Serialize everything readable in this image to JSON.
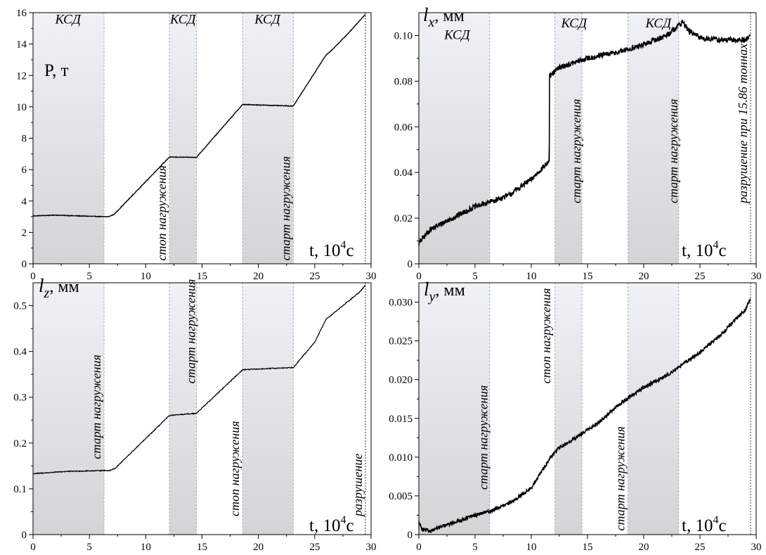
{
  "chart_data": [
    {
      "type": "line",
      "xlim": [
        0,
        30
      ],
      "ylim": [
        0,
        16
      ],
      "x_ticks": [
        "0",
        "5",
        "10",
        "15",
        "20",
        "25",
        "30"
      ],
      "y_ticks": [
        "0",
        "2",
        "4",
        "6",
        "8",
        "10",
        "12",
        "14",
        "16"
      ],
      "ylabel": "P, т",
      "xlabel_text": "t, 10",
      "xlabel_exp": "4",
      "xlabel_unit": "c",
      "shaded_regions": [
        [
          0,
          6.3
        ],
        [
          12.1,
          14.5
        ],
        [
          18.6,
          23.1
        ]
      ],
      "region_labels": [
        {
          "text": "КСД",
          "x": 3.1,
          "y": 15.3
        },
        {
          "text": "КСД",
          "x": 13.3,
          "y": 15.3
        },
        {
          "text": "КСД",
          "x": 20.8,
          "y": 15.3
        }
      ],
      "vertical_labels": [
        {
          "text": "стоп нагружения",
          "x": 12.1,
          "y": 0.2
        },
        {
          "text": "старт нагружения",
          "x": 23.1,
          "y": 0.2
        }
      ],
      "end_line_x": 29.5,
      "stroke": 1.4,
      "noise": 0.02,
      "series": [
        {
          "x": [
            0,
            2,
            4,
            6.3,
            6.7,
            7.2,
            12.1,
            14.5,
            18.6,
            23.1,
            26,
            26.5,
            28,
            29,
            29.5
          ],
          "y": [
            3.05,
            3.1,
            3.05,
            3.0,
            3.0,
            3.15,
            6.8,
            6.78,
            10.15,
            10.05,
            13.3,
            13.6,
            14.7,
            15.5,
            15.9
          ]
        }
      ]
    },
    {
      "type": "line",
      "xlim": [
        0,
        30
      ],
      "ylim": [
        0,
        0.11
      ],
      "x_ticks": [
        "0",
        "5",
        "10",
        "15",
        "20",
        "25",
        "30"
      ],
      "y_ticks": [
        "0",
        "0.02",
        "0.04",
        "0.06",
        "0.08",
        "0.10"
      ],
      "ylabel_letter": "l",
      "ylabel_sub": "x",
      "ylabel_unit": ", мм",
      "xlabel_text": "t, 10",
      "xlabel_exp": "4",
      "xlabel_unit": "c",
      "shaded_regions": [
        [
          0,
          6.3
        ],
        [
          12.1,
          14.5
        ],
        [
          18.6,
          23.1
        ]
      ],
      "region_labels": [
        {
          "text": "КСД",
          "x": 3.4,
          "y": 0.0985
        },
        {
          "text": "КСД",
          "x": 13.8,
          "y": 0.1035
        },
        {
          "text": "КСД",
          "x": 21.3,
          "y": 0.1035
        }
      ],
      "vertical_labels": [
        {
          "text": "старт нагружения",
          "x": 14.7,
          "y": 0.0265
        },
        {
          "text": "старт нагружения",
          "x": 23.3,
          "y": 0.0265
        },
        {
          "text": "разрушение при 15.86 тоннах",
          "x": 29.5,
          "y": 0.0265
        }
      ],
      "end_line_x": 29.5,
      "stroke": 1.6,
      "noise": 0.0012,
      "series": [
        {
          "x": [
            0,
            1,
            3,
            5,
            6.3,
            8,
            10,
            11.6,
            11.62,
            12.5,
            15,
            18,
            20,
            22,
            23,
            23.5,
            24,
            25,
            27,
            29,
            29.5
          ],
          "y": [
            0.009,
            0.015,
            0.02,
            0.025,
            0.027,
            0.03,
            0.037,
            0.045,
            0.082,
            0.086,
            0.09,
            0.093,
            0.096,
            0.1,
            0.104,
            0.106,
            0.102,
            0.099,
            0.098,
            0.098,
            0.1
          ]
        }
      ]
    },
    {
      "type": "line",
      "xlim": [
        0,
        30
      ],
      "ylim": [
        0,
        0.55
      ],
      "x_ticks": [
        "0",
        "5",
        "10",
        "15",
        "20",
        "25",
        "30"
      ],
      "y_ticks": [
        "0",
        "0.1",
        "0.2",
        "0.3",
        "0.4",
        "0.5"
      ],
      "ylabel_letter": "l",
      "ylabel_sub": "z",
      "ylabel_unit": ", мм",
      "xlabel_text": "t, 10",
      "xlabel_exp": "4",
      "xlabel_unit": "c",
      "shaded_regions": [
        [
          0,
          6.3
        ],
        [
          12.1,
          14.5
        ],
        [
          18.6,
          23.1
        ]
      ],
      "region_labels": [],
      "vertical_labels": [
        {
          "text": "старт нагружения",
          "x": 6.3,
          "y": 0.165
        },
        {
          "text": "старт нагружения",
          "x": 14.7,
          "y": 0.33
        },
        {
          "text": "стоп нагружения",
          "x": 18.6,
          "y": 0.04
        },
        {
          "text": "разрушение",
          "x": 29.5,
          "y": 0.04
        }
      ],
      "end_line_x": 29.5,
      "stroke": 1.2,
      "noise": 0.001,
      "series": [
        {
          "x": [
            0,
            3,
            6.3,
            6.8,
            7.3,
            12.1,
            14.5,
            18.6,
            23.1,
            25,
            26,
            27,
            28,
            29,
            29.5
          ],
          "y": [
            0.133,
            0.138,
            0.14,
            0.14,
            0.145,
            0.26,
            0.265,
            0.36,
            0.365,
            0.42,
            0.47,
            0.49,
            0.51,
            0.53,
            0.545
          ]
        }
      ]
    },
    {
      "type": "line",
      "xlim": [
        0,
        30
      ],
      "ylim": [
        0,
        0.0325
      ],
      "x_ticks": [
        "0",
        "5",
        "10",
        "15",
        "20",
        "25",
        "30"
      ],
      "y_ticks": [
        "0",
        "0.005",
        "0.010",
        "0.015",
        "0.020",
        "0.025",
        "0.030"
      ],
      "ylabel_letter": "l",
      "ylabel_sub": "y",
      "ylabel_unit": ", мм",
      "xlabel_text": "t, 10",
      "xlabel_exp": "4",
      "xlabel_unit": "c",
      "shaded_regions": [
        [
          0,
          6.3
        ],
        [
          12.1,
          14.5
        ],
        [
          18.6,
          23.1
        ]
      ],
      "region_labels": [],
      "vertical_labels": [
        {
          "text": "старт нагружения",
          "x": 6.4,
          "y": 0.0058
        },
        {
          "text": "стоп нагружения",
          "x": 12.0,
          "y": 0.0195
        },
        {
          "text": "старт нагружения",
          "x": 18.6,
          "y": 0.0005
        }
      ],
      "end_line_x": 29.5,
      "stroke": 1.6,
      "noise": 0.00022,
      "series": [
        {
          "x": [
            0,
            0.3,
            1,
            3,
            5,
            6.3,
            8,
            10,
            11.5,
            12,
            12.5,
            14,
            16,
            18,
            20,
            22,
            23.5,
            25,
            27,
            29,
            29.5
          ],
          "y": [
            0.0016,
            0.0006,
            0.0005,
            0.0015,
            0.0025,
            0.003,
            0.004,
            0.006,
            0.0095,
            0.0105,
            0.0112,
            0.0125,
            0.0145,
            0.017,
            0.019,
            0.0205,
            0.022,
            0.0235,
            0.026,
            0.029,
            0.0303
          ]
        }
      ]
    }
  ]
}
